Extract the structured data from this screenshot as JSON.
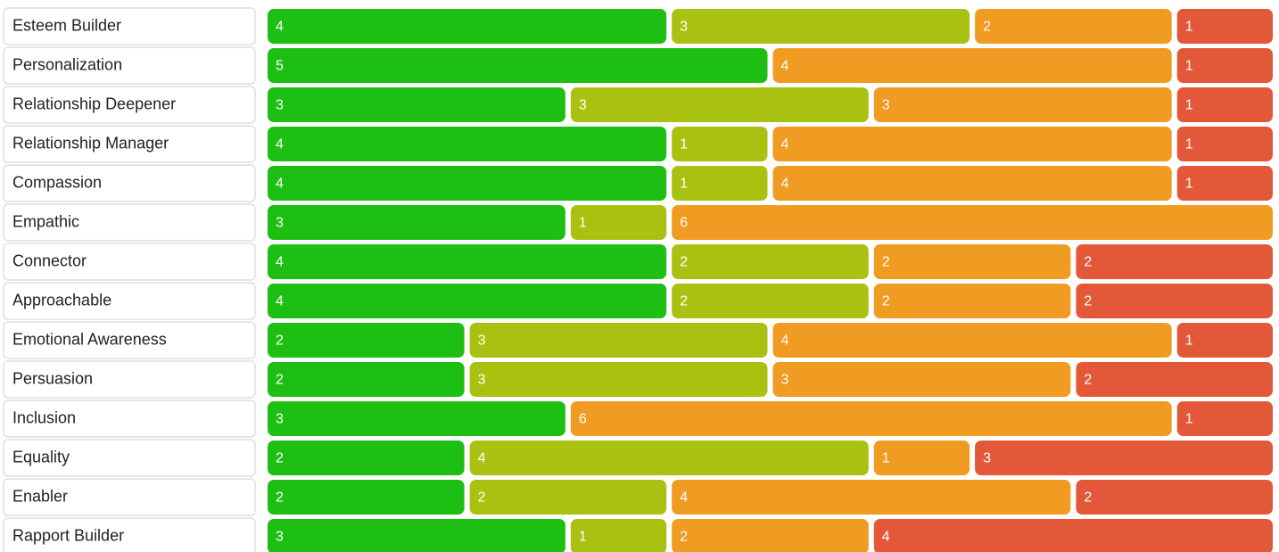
{
  "chart_data": {
    "type": "stacked_bar",
    "categories": [
      "Esteem Builder",
      "Personalization",
      "Relationship Deepener",
      "Relationship Manager",
      "Compassion",
      "Empathic",
      "Connector",
      "Approachable",
      "Emotional Awareness",
      "Persuasion",
      "Inclusion",
      "Equality",
      "Enabler",
      "Rapport Builder"
    ],
    "series": [
      {
        "color": "#1dbf13",
        "values": [
          4,
          5,
          3,
          4,
          4,
          3,
          4,
          4,
          2,
          2,
          3,
          2,
          2,
          3
        ]
      },
      {
        "color": "#a9c212",
        "values": [
          3,
          null,
          3,
          1,
          1,
          1,
          2,
          2,
          3,
          3,
          null,
          4,
          2,
          1
        ]
      },
      {
        "color": "#f09b22",
        "values": [
          2,
          4,
          3,
          4,
          4,
          6,
          2,
          2,
          4,
          3,
          6,
          1,
          4,
          2
        ]
      },
      {
        "color": "#e4583a",
        "values": [
          1,
          1,
          1,
          1,
          1,
          null,
          2,
          2,
          1,
          2,
          1,
          3,
          2,
          4
        ]
      }
    ]
  }
}
